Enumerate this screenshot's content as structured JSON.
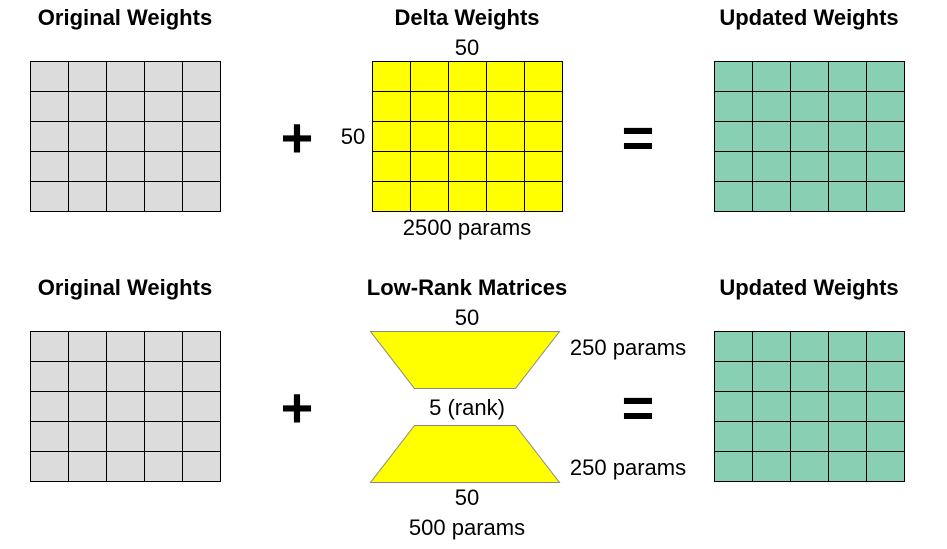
{
  "top": {
    "left_title": "Original Weights",
    "middle_title": "Delta Weights",
    "right_title": "Updated Weights",
    "delta_cols_label": "50",
    "delta_rows_label": "50",
    "delta_params_label": "2500 params",
    "plus": "+",
    "equals": "="
  },
  "bottom": {
    "left_title": "Original Weights",
    "middle_title": "Low-Rank Matrices",
    "right_title": "Updated Weights",
    "upper_width_label": "50",
    "upper_params_label": "250 params",
    "rank_label": "5 (rank)",
    "lower_params_label": "250 params",
    "lower_width_label": "50",
    "total_params_label": "500 params",
    "plus": "+",
    "equals": "="
  },
  "colors": {
    "original": "#dcdcdc",
    "delta": "#ffff00",
    "updated": "#88cfb4",
    "trapezoid": "#ffff00"
  }
}
